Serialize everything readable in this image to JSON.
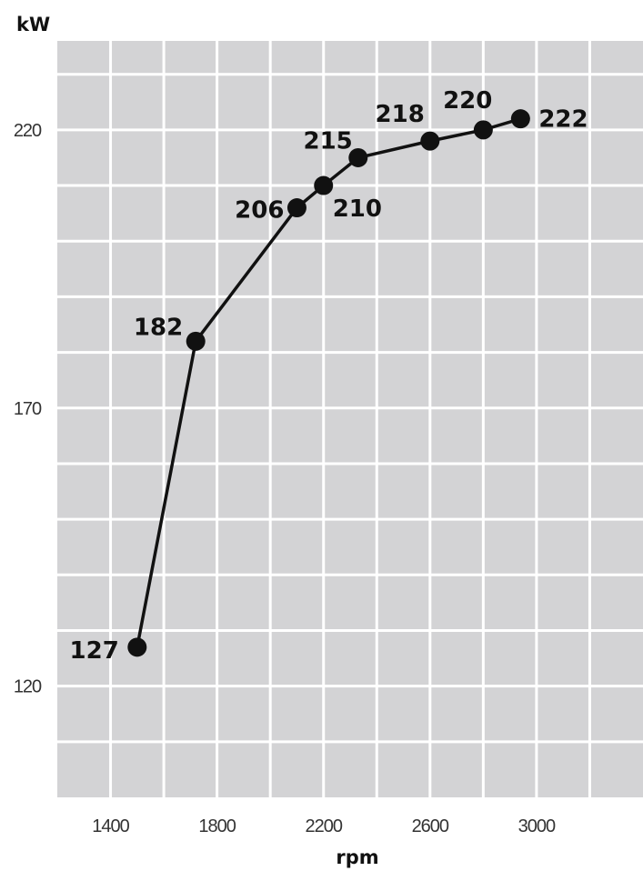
{
  "chart_data": {
    "type": "line",
    "xlabel": "rpm",
    "ylabel": "kW",
    "x_ticks": [
      1400,
      1800,
      2200,
      2600,
      3000
    ],
    "y_ticks": [
      120,
      170,
      220
    ],
    "xlim": [
      1200,
      3400
    ],
    "ylim": [
      100,
      236
    ],
    "grid": true,
    "colors": {
      "plot_bg": "#d3d3d5",
      "grid": "#ffffff",
      "line": "#111111"
    },
    "series": [
      {
        "x": [
          1500,
          1720,
          2100,
          2200,
          2330,
          2600,
          2800,
          2940
        ],
        "y": [
          127,
          182,
          206,
          210,
          215,
          218,
          220,
          222
        ],
        "labels": [
          "127",
          "182",
          "206",
          "210",
          "215",
          "218",
          "220",
          "222"
        ]
      }
    ]
  }
}
